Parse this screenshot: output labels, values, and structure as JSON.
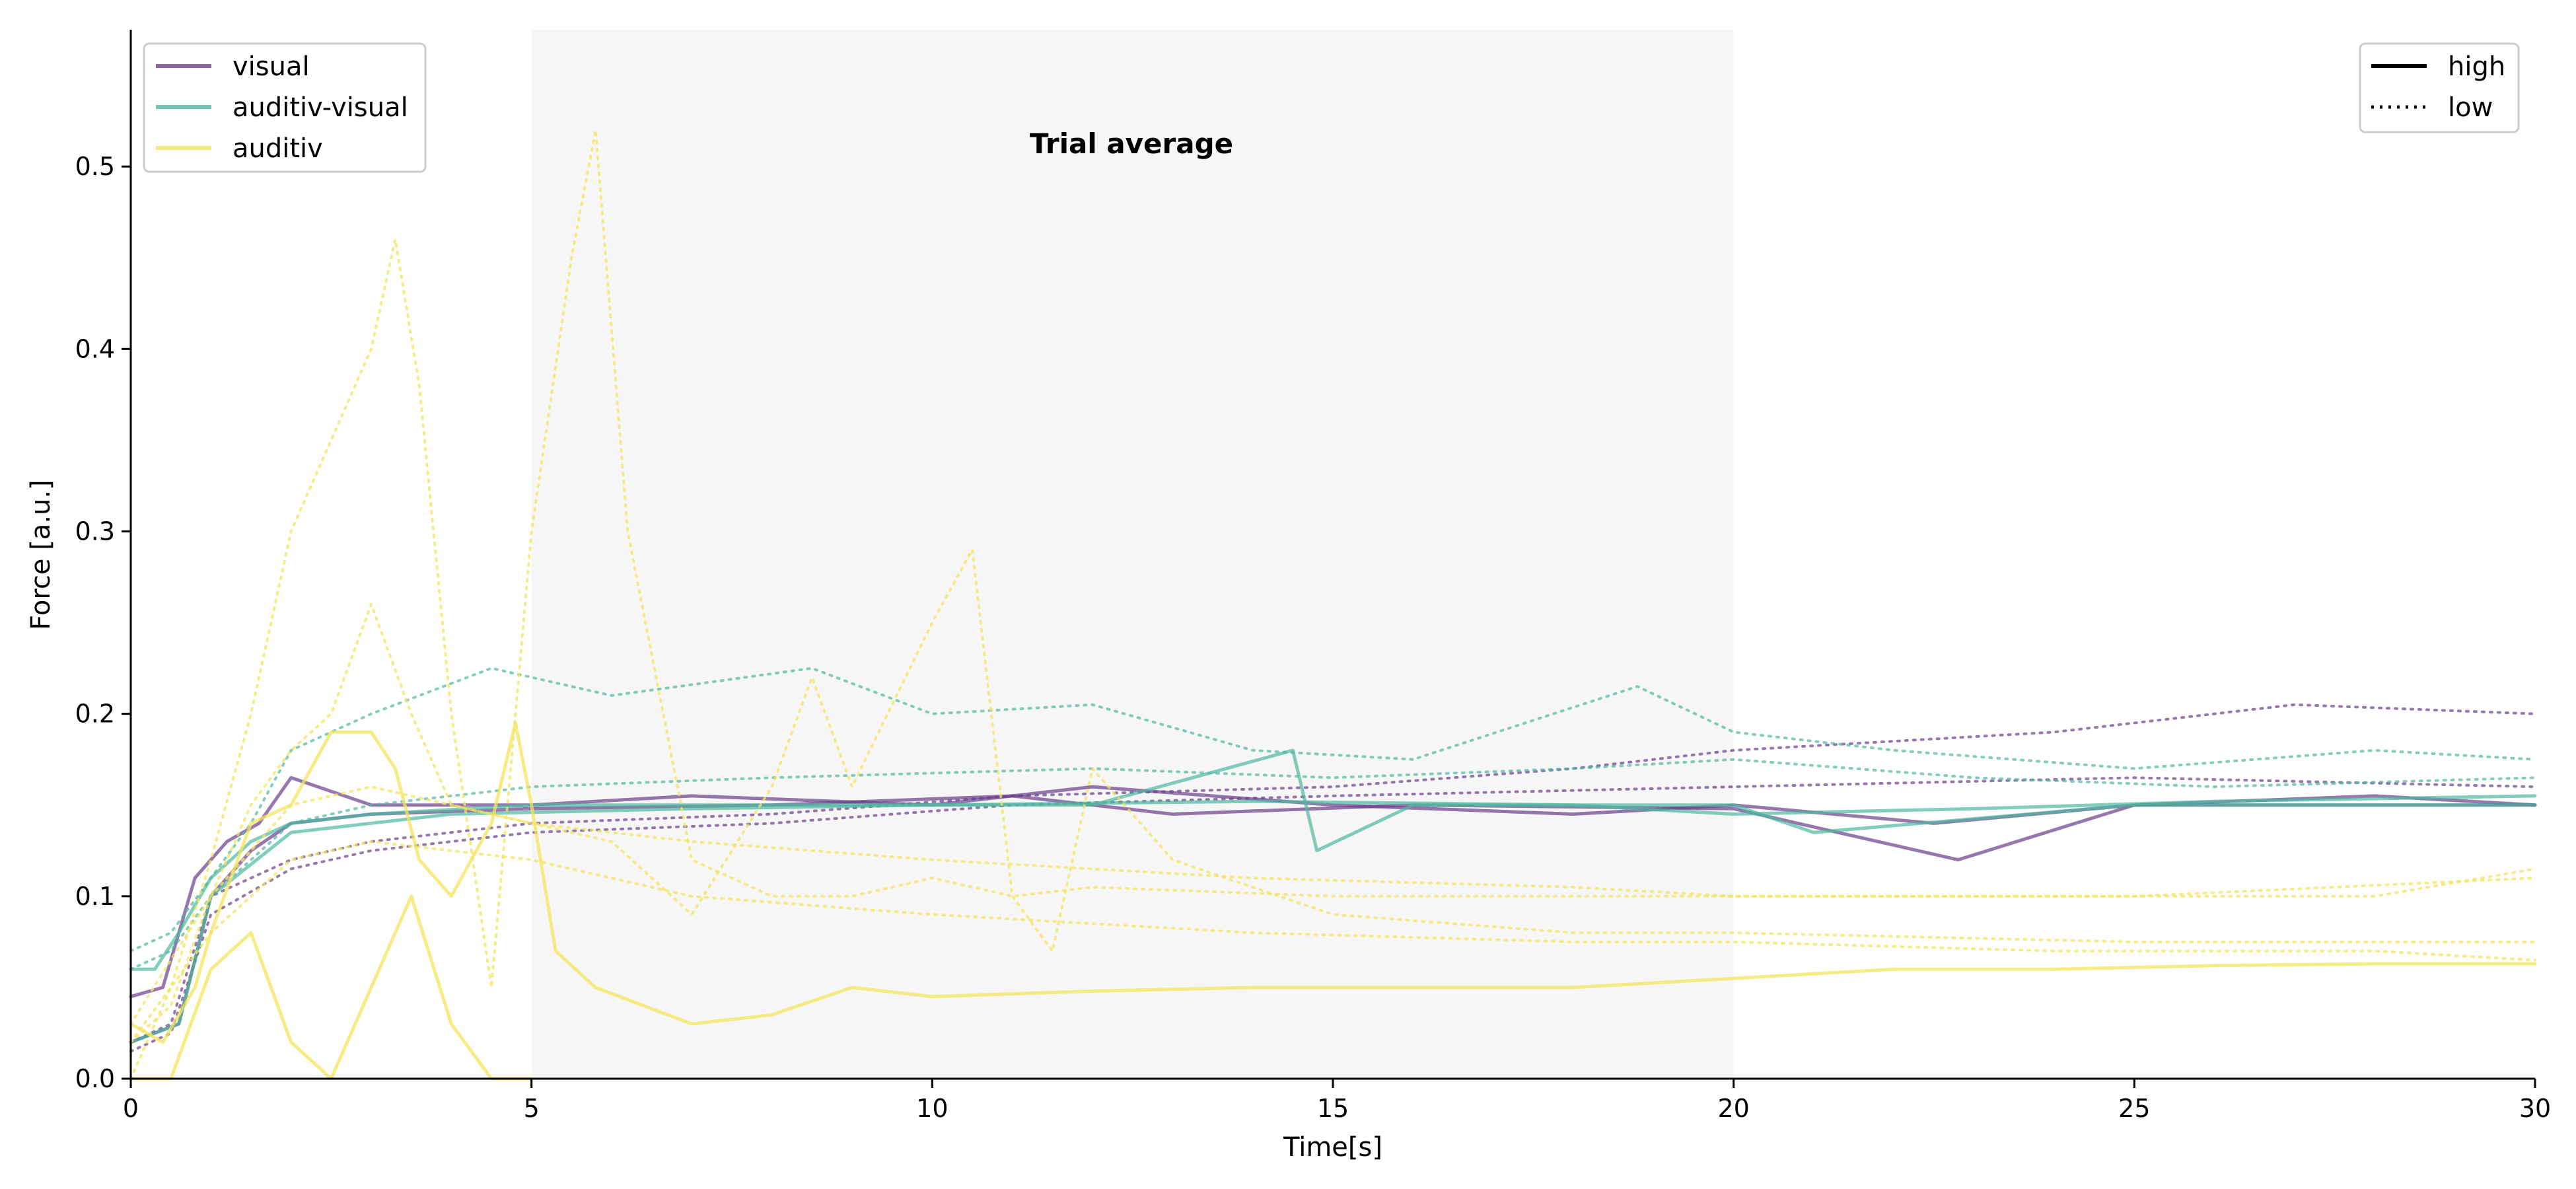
{
  "chart_data": {
    "type": "line",
    "title": "",
    "annotation": "Trial average",
    "xlabel": "Time[s]",
    "ylabel": "Force [a.u.]",
    "xlim": [
      0,
      30
    ],
    "ylim": [
      0,
      0.575
    ],
    "xticks": [
      "0",
      "5",
      "10",
      "15",
      "20",
      "25",
      "30"
    ],
    "xtick_values": [
      0,
      5,
      10,
      15,
      20,
      25,
      30
    ],
    "yticks": [
      "0.0",
      "0.1",
      "0.2",
      "0.3",
      "0.4",
      "0.5"
    ],
    "ytick_values": [
      0,
      0.1,
      0.2,
      0.3,
      0.4,
      0.5
    ],
    "shaded_region": {
      "x_start": 5,
      "x_end": 20,
      "color": "#ebebeb"
    },
    "grid": false,
    "legend_modality": {
      "placement": "top-left",
      "entries": [
        {
          "label": "visual",
          "color": "#6a3d8c"
        },
        {
          "label": "auditiv-visual",
          "color": "#4db8a0"
        },
        {
          "label": "auditiv",
          "color": "#f3e45c"
        }
      ]
    },
    "legend_level": {
      "placement": "top-right",
      "entries": [
        {
          "label": "high",
          "style": "solid"
        },
        {
          "label": "low",
          "style": "dotted"
        }
      ]
    },
    "series": [
      {
        "modality": "visual",
        "level": "high",
        "color": "#6a3d8c",
        "x": [
          0,
          0.4,
          0.8,
          1.2,
          1.6,
          2,
          3,
          4,
          5,
          7,
          10,
          12,
          15,
          18,
          20,
          22.5,
          25,
          28,
          30
        ],
        "y": [
          0.045,
          0.05,
          0.11,
          0.13,
          0.14,
          0.165,
          0.15,
          0.15,
          0.15,
          0.155,
          0.15,
          0.16,
          0.15,
          0.145,
          0.15,
          0.14,
          0.15,
          0.155,
          0.15
        ]
      },
      {
        "modality": "visual",
        "level": "high",
        "color": "#6a3d8c",
        "x": [
          0,
          0.6,
          1,
          1.5,
          2,
          3,
          5,
          8,
          11,
          13,
          16,
          20,
          22.8,
          25,
          30
        ],
        "y": [
          0.02,
          0.03,
          0.1,
          0.125,
          0.14,
          0.145,
          0.148,
          0.15,
          0.155,
          0.145,
          0.15,
          0.148,
          0.12,
          0.15,
          0.15
        ]
      },
      {
        "modality": "visual",
        "level": "low",
        "color": "#6a3d8c",
        "x": [
          0,
          0.5,
          1,
          2,
          3,
          5,
          8,
          11,
          15,
          18,
          20,
          24,
          27,
          30
        ],
        "y": [
          0.02,
          0.03,
          0.1,
          0.12,
          0.13,
          0.14,
          0.145,
          0.155,
          0.16,
          0.17,
          0.18,
          0.19,
          0.205,
          0.2
        ]
      },
      {
        "modality": "visual",
        "level": "low",
        "color": "#6a3d8c",
        "x": [
          0,
          0.5,
          1,
          2,
          3,
          5,
          8,
          11,
          15,
          20,
          25,
          30
        ],
        "y": [
          0.015,
          0.025,
          0.09,
          0.115,
          0.125,
          0.135,
          0.14,
          0.15,
          0.155,
          0.16,
          0.165,
          0.16
        ]
      },
      {
        "modality": "auditiv-visual",
        "level": "high",
        "color": "#4db8a0",
        "x": [
          0,
          0.3,
          0.6,
          1,
          1.5,
          2,
          3,
          5,
          8,
          12,
          14.5,
          14.8,
          16,
          20,
          21,
          25,
          30
        ],
        "y": [
          0.06,
          0.06,
          0.08,
          0.11,
          0.13,
          0.14,
          0.145,
          0.15,
          0.15,
          0.15,
          0.18,
          0.125,
          0.15,
          0.15,
          0.135,
          0.15,
          0.15
        ]
      },
      {
        "modality": "auditiv-visual",
        "level": "high",
        "color": "#4db8a0",
        "x": [
          0,
          0.6,
          1,
          2,
          4,
          7,
          10,
          14,
          18,
          20,
          23,
          26,
          30
        ],
        "y": [
          0.02,
          0.03,
          0.1,
          0.135,
          0.145,
          0.148,
          0.15,
          0.152,
          0.15,
          0.145,
          0.148,
          0.152,
          0.155
        ]
      },
      {
        "modality": "auditiv-visual",
        "level": "low",
        "color": "#4db8a0",
        "x": [
          0,
          0.5,
          1,
          1.5,
          2,
          3,
          4.5,
          6,
          8.5,
          10,
          12,
          14,
          16,
          18.8,
          20,
          22,
          25,
          28,
          30
        ],
        "y": [
          0.07,
          0.08,
          0.11,
          0.14,
          0.18,
          0.2,
          0.225,
          0.21,
          0.225,
          0.2,
          0.205,
          0.18,
          0.175,
          0.215,
          0.19,
          0.18,
          0.17,
          0.18,
          0.175
        ]
      },
      {
        "modality": "auditiv-visual",
        "level": "low",
        "color": "#4db8a0",
        "x": [
          0,
          0.5,
          1,
          2,
          3,
          5,
          8,
          12,
          15,
          18,
          20,
          23,
          26,
          30
        ],
        "y": [
          0.06,
          0.07,
          0.1,
          0.14,
          0.15,
          0.16,
          0.165,
          0.17,
          0.165,
          0.17,
          0.175,
          0.165,
          0.16,
          0.165
        ]
      },
      {
        "modality": "auditiv",
        "level": "high",
        "color": "#f3e45c",
        "x": [
          0,
          0.4,
          0.8,
          1,
          1.5,
          2,
          2.5,
          3,
          3.3,
          3.6,
          4,
          4.5,
          4.8,
          5,
          5.3,
          5.8,
          7,
          8,
          9,
          10,
          12,
          14,
          16,
          18,
          20,
          22,
          24,
          26,
          28,
          30
        ],
        "y": [
          0.03,
          0.02,
          0.05,
          0.08,
          0.14,
          0.15,
          0.19,
          0.19,
          0.17,
          0.12,
          0.1,
          0.14,
          0.195,
          0.15,
          0.07,
          0.05,
          0.03,
          0.035,
          0.05,
          0.045,
          0.048,
          0.05,
          0.05,
          0.05,
          0.055,
          0.06,
          0.06,
          0.062,
          0.063,
          0.063
        ]
      },
      {
        "modality": "auditiv",
        "level": "high",
        "color": "#f3e45c",
        "x": [
          0,
          0.5,
          1,
          1.5,
          2,
          2.5,
          3,
          3.5,
          4,
          4.5,
          5
        ],
        "y": [
          0.0,
          0.0,
          0.06,
          0.08,
          0.02,
          0.0,
          0.05,
          0.1,
          0.03,
          0.0,
          0.0
        ]
      },
      {
        "modality": "auditiv",
        "level": "low",
        "color": "#f3e45c",
        "x": [
          0,
          0.5,
          1,
          1.5,
          2,
          2.5,
          3,
          3.3,
          3.6,
          4,
          4.5,
          5,
          5.5,
          5.8,
          6.2,
          7,
          8,
          9,
          10,
          11,
          12,
          15,
          20,
          25,
          30
        ],
        "y": [
          0.0,
          0.05,
          0.12,
          0.2,
          0.3,
          0.35,
          0.4,
          0.46,
          0.38,
          0.2,
          0.05,
          0.3,
          0.45,
          0.52,
          0.3,
          0.12,
          0.1,
          0.1,
          0.11,
          0.1,
          0.105,
          0.1,
          0.1,
          0.1,
          0.11
        ]
      },
      {
        "modality": "auditiv",
        "level": "low",
        "color": "#f3e45c",
        "x": [
          0,
          0.5,
          1,
          1.5,
          2,
          2.5,
          3,
          3.5,
          4,
          5,
          6,
          7,
          8,
          8.5,
          9,
          10,
          10.5,
          11,
          11.5,
          12,
          13,
          15,
          18,
          20,
          25,
          30
        ],
        "y": [
          0.02,
          0.04,
          0.1,
          0.15,
          0.18,
          0.2,
          0.26,
          0.2,
          0.15,
          0.14,
          0.13,
          0.09,
          0.16,
          0.22,
          0.16,
          0.25,
          0.29,
          0.1,
          0.07,
          0.17,
          0.12,
          0.09,
          0.08,
          0.08,
          0.075,
          0.075
        ]
      },
      {
        "modality": "auditiv",
        "level": "low",
        "color": "#f3e45c",
        "x": [
          0,
          1,
          2,
          3,
          5,
          7,
          10,
          14,
          18,
          20,
          24,
          28,
          30
        ],
        "y": [
          0.03,
          0.1,
          0.15,
          0.16,
          0.14,
          0.13,
          0.12,
          0.11,
          0.105,
          0.1,
          0.1,
          0.1,
          0.115
        ]
      },
      {
        "modality": "auditiv",
        "level": "low",
        "color": "#f3e45c",
        "x": [
          0,
          1,
          2,
          3,
          5,
          7,
          10,
          14,
          18,
          20,
          24,
          28,
          30
        ],
        "y": [
          0.02,
          0.08,
          0.12,
          0.13,
          0.12,
          0.1,
          0.09,
          0.08,
          0.075,
          0.075,
          0.07,
          0.07,
          0.065
        ]
      }
    ]
  }
}
